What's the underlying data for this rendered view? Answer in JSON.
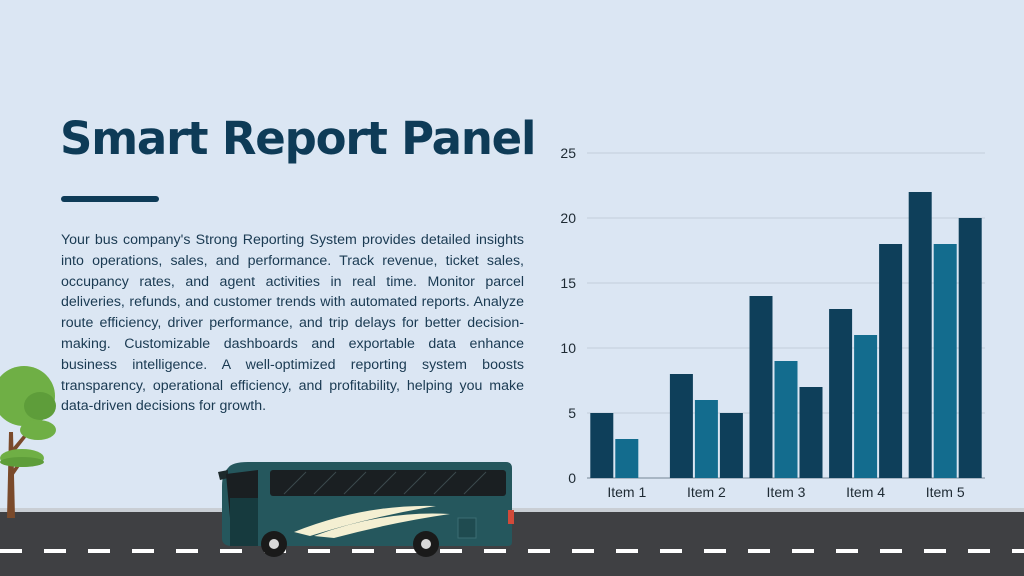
{
  "slide": {
    "title": "Smart Report Panel",
    "description": "Your bus company's Strong Reporting System provides detailed insights into operations, sales, and performance. Track revenue, ticket sales, occupancy rates, and agent activities in real time. Monitor parcel deliveries, refunds, and customer trends with automated reports. Analyze route efficiency, driver performance, and trip delays for better decision-making. Customizable dashboards and exportable data enhance business intelligence. A well-optimized reporting system boosts transparency, operational efficiency, and profitability, helping you make data-driven decisions for growth."
  },
  "colors": {
    "background": "#dbe6f3",
    "title": "#0e3b57",
    "bar_dark": "#0e3f5a",
    "bar_mid": "#136c8e",
    "road": "#3f4043",
    "bus_body": "#25575d"
  },
  "illustrations": [
    "tree-icon",
    "bus-icon"
  ],
  "chart_data": {
    "type": "bar",
    "categories": [
      "Item 1",
      "Item 2",
      "Item 3",
      "Item 4",
      "Item 5"
    ],
    "series": [
      {
        "values": [
          5,
          8,
          14,
          13,
          22
        ],
        "color": "#0e3f5a"
      },
      {
        "values": [
          3,
          6,
          9,
          11,
          18
        ],
        "color": "#136c8e"
      },
      {
        "values": [
          0,
          5,
          7,
          18,
          20
        ],
        "color": "#0e3f5a"
      }
    ],
    "_note": "series order: first, second, third bar in each group",
    "ylim": [
      0,
      25
    ],
    "yticks": [
      0,
      5,
      10,
      15,
      20,
      25
    ],
    "grid": true,
    "legend": "none",
    "title": "",
    "xlabel": "",
    "ylabel": ""
  }
}
